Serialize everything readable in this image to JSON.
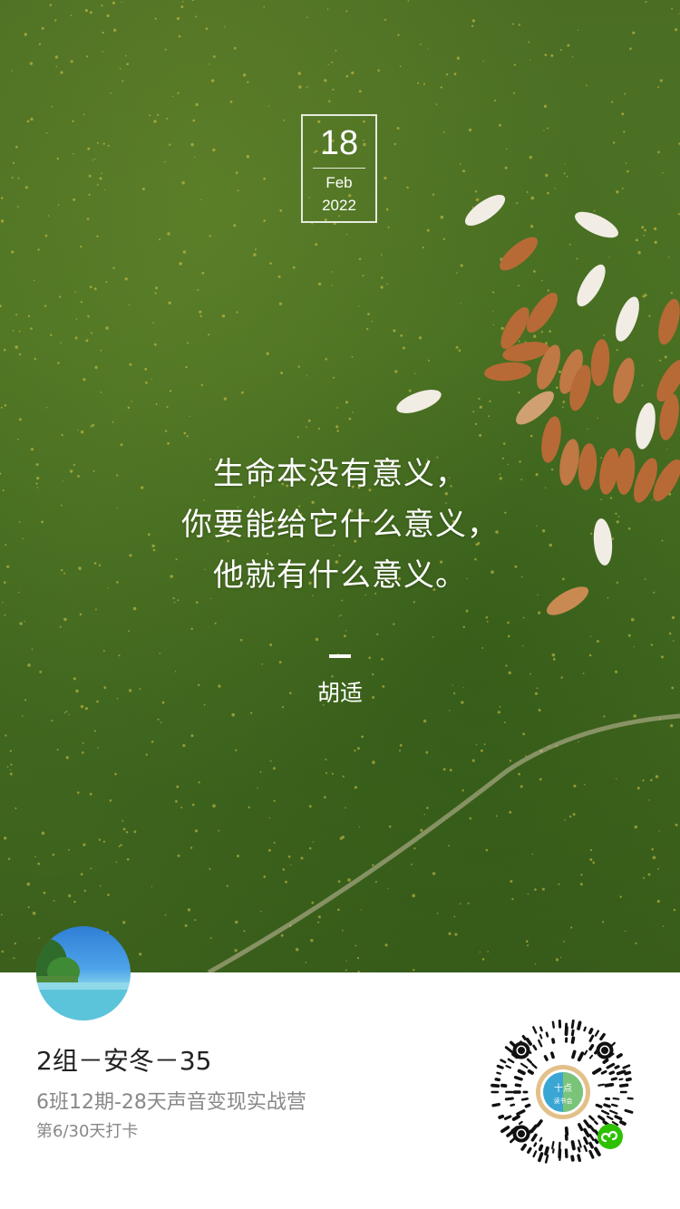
{
  "date": {
    "day": "18",
    "month": "Feb",
    "year": "2022"
  },
  "quote": {
    "lines": [
      "生命本没有意义，",
      "你要能给它什么意义，",
      "他就有什么意义。"
    ],
    "dash": "—",
    "author": "胡适"
  },
  "user": {
    "name": "2组－安冬－35",
    "camp": "6班12期-28天声音变现实战营",
    "checkin": "第6/30天打卡"
  },
  "qr": {
    "center_label_top": "十点",
    "center_label_bottom": "读书会"
  },
  "colors": {
    "grass": "#4a6d23",
    "footer_bg": "#ffffff",
    "name_text": "#222222",
    "secondary_text": "#888888",
    "wechat_green": "#2dc100"
  },
  "icons": [
    "wechat-miniprogram-icon",
    "qr-code"
  ]
}
